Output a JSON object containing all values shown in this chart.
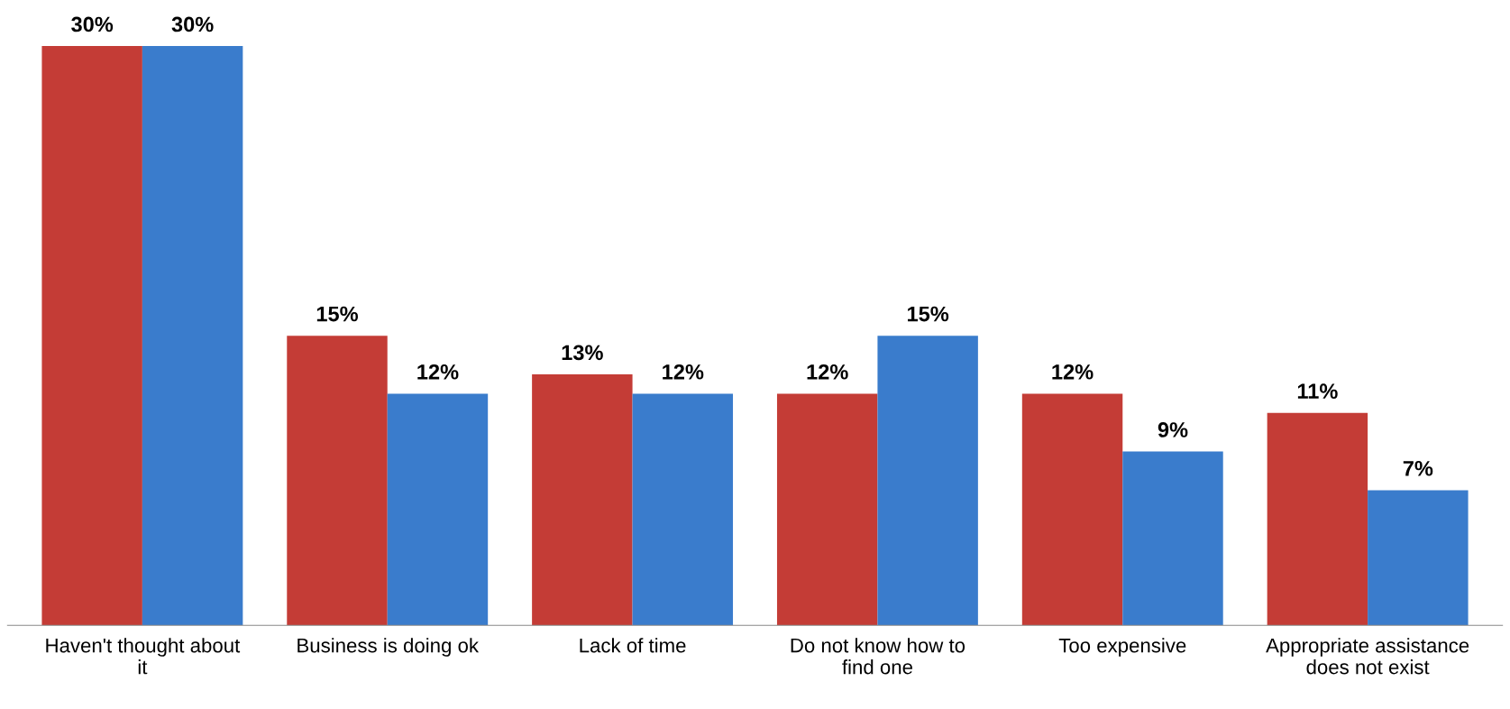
{
  "chart_data": {
    "type": "bar",
    "categories": [
      "Haven't thought about it",
      "Business is doing ok",
      "Lack of time",
      "Do not know how to find one",
      "Too expensive",
      "Appropriate assistance does not exist"
    ],
    "series": [
      {
        "color": "#c43c36",
        "values": [
          30,
          15,
          13,
          12,
          12,
          11
        ],
        "value_labels": [
          "30%",
          "15%",
          "13%",
          "12%",
          "12%",
          "11%"
        ]
      },
      {
        "color": "#3a7ccc",
        "values": [
          30,
          12,
          12,
          15,
          9,
          7
        ],
        "value_labels": [
          "30%",
          "12%",
          "12%",
          "15%",
          "9%",
          "7%"
        ]
      }
    ],
    "tick_labels": "x",
    "grid": false,
    "legend": false
  }
}
